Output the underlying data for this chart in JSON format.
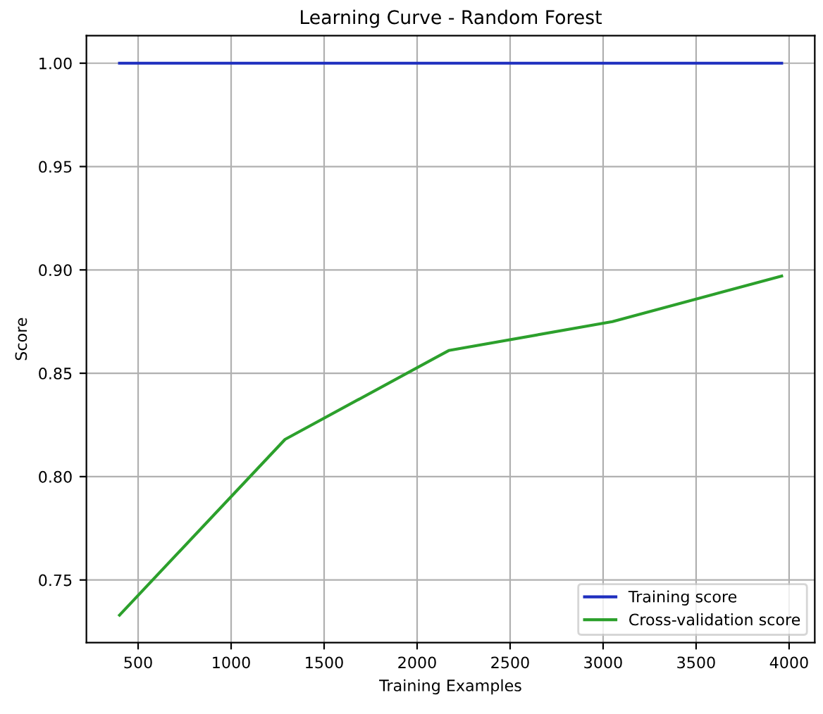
{
  "chart_data": {
    "type": "line",
    "title": "Learning Curve - Random Forest",
    "xlabel": "Training Examples",
    "ylabel": "Score",
    "x": [
      400,
      1290,
      2170,
      3050,
      3960
    ],
    "series": [
      {
        "name": "Training score",
        "color": "#1f2fbf",
        "values": [
          1.0,
          1.0,
          1.0,
          1.0,
          1.0
        ]
      },
      {
        "name": "Cross-validation score",
        "color": "#2ca02c",
        "values": [
          0.733,
          0.818,
          0.861,
          0.875,
          0.897
        ]
      }
    ],
    "xlim": [
      222,
      4138
    ],
    "ylim": [
      0.7197,
      1.0133
    ],
    "xticks": [
      500,
      1000,
      1500,
      2000,
      2500,
      3000,
      3500,
      4000
    ],
    "yticks": [
      {
        "value": 0.75,
        "label": "0.75"
      },
      {
        "value": 0.8,
        "label": "0.80"
      },
      {
        "value": 0.85,
        "label": "0.85"
      },
      {
        "value": 0.9,
        "label": "0.90"
      },
      {
        "value": 0.95,
        "label": "0.95"
      },
      {
        "value": 1.0,
        "label": "1.00"
      }
    ],
    "grid": true,
    "legend": "bottom right",
    "marker": "none",
    "line_style": "solid"
  }
}
